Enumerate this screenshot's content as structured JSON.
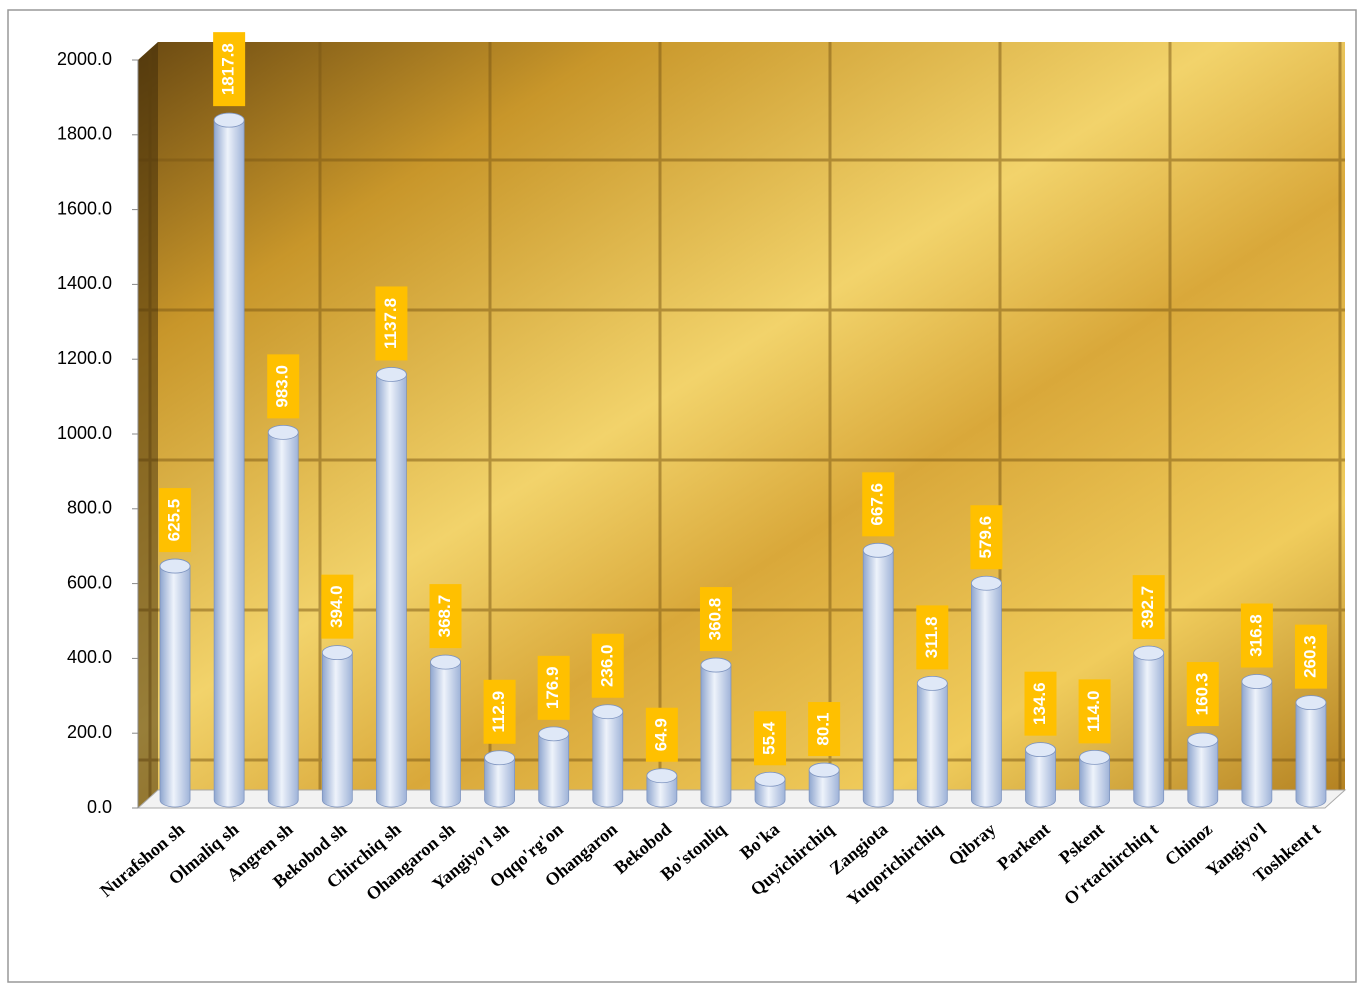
{
  "chart_data": {
    "type": "bar",
    "categories": [
      "Nurafshon sh",
      "Olmaliq sh",
      "Angren sh",
      "Bekobod sh",
      "Chirchiq sh",
      "Ohangaron sh",
      "Yangiyo'l sh",
      "Oqqo'rg'on",
      "Ohangaron",
      "Bekobod",
      "Bo'stonliq",
      "Bo'ka",
      "Quyichirchiq",
      "Zangiota",
      "Yuqorichirchiq",
      "Qibray",
      "Parkent",
      "Pskent",
      "O'rtachirchiq t",
      "Chinoz",
      "Yangiyo'l",
      "Toshkent t"
    ],
    "values": [
      625.5,
      1817.8,
      983.0,
      394.0,
      1137.8,
      368.7,
      112.9,
      176.9,
      236.0,
      64.9,
      360.8,
      55.4,
      80.1,
      667.6,
      311.8,
      579.6,
      134.6,
      114.0,
      392.7,
      160.3,
      316.8,
      260.3
    ],
    "value_labels": [
      "625.5",
      "1817.8",
      "983.0",
      "394.0",
      "1137.8",
      "368.7",
      "112.9",
      "176.9",
      "236.0",
      "64.9",
      "360.8",
      "55.4",
      "80.1",
      "667.6",
      "311.8",
      "579.6",
      "134.6",
      "114.0",
      "392.7",
      "160.3",
      "316.8",
      "260.3"
    ],
    "color": "#b8c9e8",
    "label_color": "#ffc000",
    "ylim": [
      0,
      2000
    ],
    "yticks": [
      {
        "value": 0,
        "label": "0.0"
      },
      {
        "value": 200,
        "label": "200.0"
      },
      {
        "value": 400,
        "label": "400.0"
      },
      {
        "value": 600,
        "label": "600.0"
      },
      {
        "value": 800,
        "label": "800.0"
      },
      {
        "value": 1000,
        "label": "1000.0"
      },
      {
        "value": 1200,
        "label": "1200.0"
      },
      {
        "value": 1400,
        "label": "1400.0"
      },
      {
        "value": 1600,
        "label": "1600.0"
      },
      {
        "value": 1800,
        "label": "1800.0"
      },
      {
        "value": 2000,
        "label": "2000.0"
      }
    ]
  }
}
